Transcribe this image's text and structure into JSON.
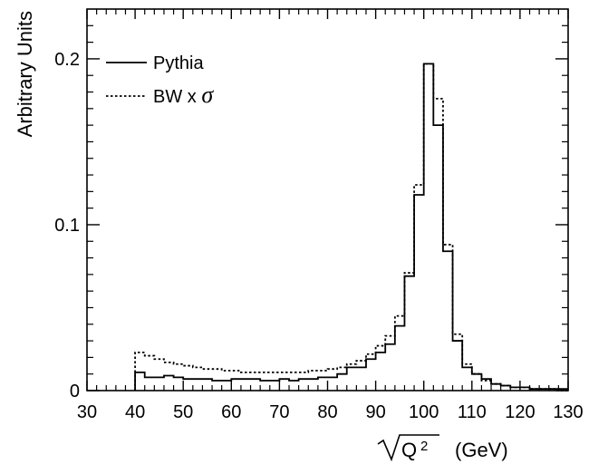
{
  "chart_data": {
    "type": "line",
    "title": "",
    "xlabel": "√Q² (GeV)",
    "xlabel_parts": {
      "radicand": "Q",
      "exponent": "2",
      "unit": "(GeV)"
    },
    "ylabel": "Arbitrary Units",
    "xlim": [
      30,
      130
    ],
    "ylim": [
      0,
      0.23
    ],
    "x_ticks": [
      "30",
      "40",
      "50",
      "60",
      "70",
      "80",
      "90",
      "100",
      "110",
      "120",
      "130"
    ],
    "y_ticks": [
      "0",
      "0.1",
      "0.2"
    ],
    "grid": false,
    "legend_position": "top-left",
    "bin_edges": [
      40,
      42,
      44,
      46,
      48,
      50,
      52,
      54,
      56,
      58,
      60,
      62,
      64,
      66,
      68,
      70,
      72,
      74,
      76,
      78,
      80,
      82,
      84,
      86,
      88,
      90,
      92,
      94,
      96,
      98,
      100,
      102,
      104,
      106,
      108,
      110,
      112,
      114,
      116,
      118,
      120,
      122,
      124,
      126,
      128,
      130
    ],
    "series": [
      {
        "name": "Pythia",
        "style": "solid",
        "color": "#000000",
        "values": [
          0.011,
          0.008,
          0.008,
          0.009,
          0.008,
          0.007,
          0.007,
          0.007,
          0.006,
          0.006,
          0.007,
          0.007,
          0.007,
          0.006,
          0.006,
          0.007,
          0.006,
          0.007,
          0.007,
          0.008,
          0.008,
          0.01,
          0.014,
          0.014,
          0.019,
          0.023,
          0.028,
          0.039,
          0.069,
          0.118,
          0.197,
          0.16,
          0.084,
          0.03,
          0.014,
          0.01,
          0.007,
          0.004,
          0.003,
          0.002,
          0.002,
          0.001,
          0.001,
          0.001,
          0.001
        ]
      },
      {
        "name": "BW x σ",
        "name_parts": {
          "prefix": "BW x ",
          "symbol": "σ"
        },
        "style": "dotted",
        "color": "#000000",
        "values": [
          0.023,
          0.021,
          0.019,
          0.017,
          0.016,
          0.015,
          0.014,
          0.013,
          0.013,
          0.012,
          0.012,
          0.011,
          0.011,
          0.011,
          0.011,
          0.011,
          0.011,
          0.011,
          0.012,
          0.012,
          0.013,
          0.014,
          0.016,
          0.018,
          0.022,
          0.027,
          0.033,
          0.045,
          0.071,
          0.124,
          0.197,
          0.176,
          0.088,
          0.034,
          0.016,
          0.01,
          0.006,
          0.004,
          0.003,
          0.002,
          0.002,
          0.001,
          0.001,
          0.001,
          0.0
        ]
      }
    ]
  }
}
